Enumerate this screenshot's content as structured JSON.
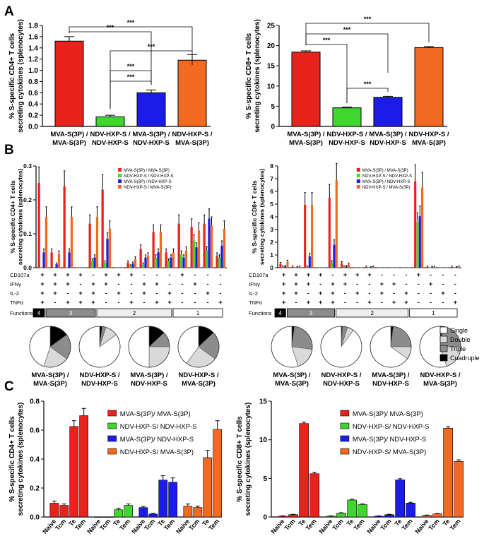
{
  "panel_letters": [
    "A",
    "B",
    "C"
  ],
  "groups": [
    "MVA-S(3P) / MVA-S(3P)",
    "NDV-HXP-S / NDV-HXP-S",
    "MVA-S(3P) / NDV-HXP-S",
    "NDV-HXP-S / MVA-S(3P)"
  ],
  "group_label_lines": [
    [
      "MVA-S(3P) /",
      "MVA-S(3P)"
    ],
    [
      "NDV-HXP-S /",
      "NDV-HXP-S"
    ],
    [
      "MVA-S(3P) /",
      "NDV-HXP-S"
    ],
    [
      "NDV-HXP-S /",
      "MVA-S(3P)"
    ]
  ],
  "colors": {
    "mva_mva": "#e8231b",
    "ndv_ndv": "#3fd62e",
    "mva_ndv": "#1c1ce8",
    "ndv_mva": "#f26a22"
  },
  "significance": "***",
  "legend_B": [
    "MVA-S(3P) / MVA-S(3P)",
    "NDV-HXP-S / NDV-HXP-S",
    "MVA-S(3P) / NDV-HXP-S",
    "NDV-HXP-S / MVA-S(3P)"
  ],
  "legend_C": [
    "MVA-S(3P)/ MVA-S(3P)",
    "NDV-HXP-S/ NDV-HXP-S",
    "MVA-S(3P)/ NDV-HXP-S",
    "NDV-HXP-S/ MVA-S(3P)"
  ],
  "markers": [
    "CD107a",
    "IFNγ",
    "IL-2",
    "TNFα"
  ],
  "functions_label": "Functions",
  "function_boxes": [
    "4",
    "3",
    "2",
    "1"
  ],
  "pie_legend": [
    "Single",
    "Double",
    "Triple",
    "Cuadruple"
  ],
  "subsets": [
    "Naive",
    "Tcm",
    "Te",
    "Tem"
  ],
  "chart_data": [
    {
      "id": "A-left",
      "type": "bar",
      "ylabel": "% S-specific CD4+ T cells\nsecreting cytokines (splenocytes)",
      "ylim": [
        0,
        1.8
      ],
      "yticks": [
        "0.0",
        "0.2",
        "0.4",
        "0.6",
        "0.8",
        "1.0",
        "1.2",
        "1.4",
        "1.6",
        "1.8"
      ],
      "values": [
        1.52,
        0.17,
        0.6,
        1.18
      ],
      "errors": [
        0.08,
        0.03,
        0.05,
        0.1
      ]
    },
    {
      "id": "A-right",
      "type": "bar",
      "ylabel": "% S-specific CD8+ T cells\nsecreting cytokines (splenocytes)",
      "ylim": [
        0,
        25
      ],
      "yticks": [
        "0",
        "5",
        "10",
        "15",
        "20",
        "25"
      ],
      "values": [
        18.4,
        4.6,
        7.2,
        19.5
      ],
      "errors": [
        0.3,
        0.2,
        0.25,
        0.3
      ]
    },
    {
      "id": "B-left",
      "type": "bar",
      "ylabel": "% S-specific CD4+ T cells\nsecreting cytokines (splenocytes)",
      "ylim": [
        0,
        0.3
      ],
      "yticks": [
        "0.0",
        "0.1",
        "0.2",
        "0.3"
      ],
      "combos": [
        [
          1,
          1,
          1,
          1
        ],
        [
          1,
          1,
          1,
          0
        ],
        [
          1,
          1,
          0,
          1
        ],
        [
          1,
          0,
          1,
          1
        ],
        [
          0,
          1,
          1,
          1
        ],
        [
          1,
          1,
          0,
          0
        ],
        [
          1,
          0,
          1,
          0
        ],
        [
          1,
          0,
          0,
          1
        ],
        [
          0,
          1,
          1,
          0
        ],
        [
          0,
          1,
          0,
          1
        ],
        [
          0,
          0,
          1,
          1
        ],
        [
          1,
          0,
          0,
          0
        ],
        [
          0,
          1,
          0,
          0
        ],
        [
          0,
          0,
          1,
          0
        ],
        [
          0,
          0,
          0,
          1
        ]
      ],
      "series": [
        {
          "name": "MVA-S(3P) / MVA-S(3P)",
          "values": [
            0.25,
            0.045,
            0.24,
            0.0,
            0.13,
            0.23,
            0.0,
            0.015,
            0.055,
            0.105,
            0.045,
            0.13,
            0.12,
            0.13,
            0.035
          ]
        },
        {
          "name": "NDV-HXP-S / NDV-HXP-S",
          "values": [
            0.0,
            0.0,
            0.0,
            0.0,
            0.02,
            0.015,
            0.0,
            0.005,
            0.01,
            0.03,
            0.02,
            0.04,
            0.08,
            0.05,
            0.03
          ]
        },
        {
          "name": "MVA-S(3P) / NDV-HXP-S",
          "values": [
            0.045,
            0.01,
            0.045,
            0.0,
            0.03,
            0.085,
            0.0,
            0.012,
            0.03,
            0.045,
            0.03,
            0.03,
            0.06,
            0.145,
            0.065
          ]
        },
        {
          "name": "NDV-HXP-S / MVA-S(3P)",
          "values": [
            0.15,
            0.04,
            0.15,
            0.0,
            0.15,
            0.115,
            0.0,
            0.025,
            0.035,
            0.105,
            0.045,
            0.05,
            0.11,
            0.125,
            0.115
          ]
        }
      ],
      "pies": [
        [
          0.45,
          0.2,
          0.2,
          0.15
        ],
        [
          0.85,
          0.1,
          0.03,
          0.02
        ],
        [
          0.5,
          0.25,
          0.12,
          0.13
        ],
        [
          0.4,
          0.25,
          0.22,
          0.13
        ]
      ]
    },
    {
      "id": "B-right",
      "type": "bar",
      "ylabel": "% S-specific CD8+ T cells\nsecreting cytokines (splenocytes)",
      "ylim": [
        0,
        8
      ],
      "yticks": [
        "0",
        "1",
        "2",
        "3",
        "4",
        "5",
        "6",
        "7",
        "8"
      ],
      "series": [
        {
          "name": "MVA-S(3P) / MVA-S(3P)",
          "values": [
            0.3,
            0.05,
            4.95,
            0.0,
            5.5,
            0.35,
            0.0,
            0.05,
            0.0,
            0.0,
            0.0,
            6.8,
            0.05,
            0.0,
            0.05
          ]
        },
        {
          "name": "NDV-HXP-S / NDV-HXP-S",
          "values": [
            0.05,
            0.0,
            0.05,
            0.0,
            0.4,
            0.05,
            0.0,
            0.0,
            0.0,
            0.0,
            0.0,
            3.6,
            0.0,
            0.0,
            0.0
          ]
        },
        {
          "name": "MVA-S(3P) / NDV-HXP-S",
          "values": [
            0.1,
            0.02,
            0.9,
            0.0,
            1.8,
            0.1,
            0.0,
            0.02,
            0.0,
            0.0,
            0.0,
            4.05,
            0.02,
            0.0,
            0.02
          ]
        },
        {
          "name": "NDV-HXP-S / MVA-S(3P)",
          "values": [
            0.45,
            0.05,
            4.95,
            0.0,
            6.9,
            0.25,
            0.0,
            0.05,
            0.0,
            0.0,
            0.0,
            6.3,
            0.05,
            0.0,
            0.05
          ]
        }
      ],
      "pies": [
        [
          0.55,
          0.18,
          0.25,
          0.02
        ],
        [
          0.9,
          0.05,
          0.04,
          0.01
        ],
        [
          0.65,
          0.1,
          0.23,
          0.02
        ],
        [
          0.55,
          0.2,
          0.23,
          0.02
        ]
      ]
    },
    {
      "id": "C-left",
      "type": "bar",
      "ylabel": "% S-specific CD4+ T cells\nsecreting cytokines (splenocytes)",
      "ylim": [
        0,
        0.8
      ],
      "yticks": [
        "0.0",
        "0.2",
        "0.4",
        "0.6",
        "0.8"
      ],
      "series": [
        {
          "name": "MVA-S(3P)/ MVA-S(3P)",
          "values": [
            0.095,
            0.08,
            0.625,
            0.7
          ],
          "errors": [
            0.015,
            0.01,
            0.04,
            0.05
          ]
        },
        {
          "name": "NDV-HXP-S/ NDV-HXP-S",
          "values": [
            0.0,
            0.0,
            0.05,
            0.08
          ],
          "errors": [
            0,
            0,
            0.01,
            0.01
          ]
        },
        {
          "name": "MVA-S(3P)/ NDV-HXP-S",
          "values": [
            0.065,
            0.02,
            0.255,
            0.24
          ],
          "errors": [
            0.008,
            0.005,
            0.03,
            0.03
          ]
        },
        {
          "name": "NDV-HXP-S/ MVA-S(3P)",
          "values": [
            0.075,
            0.065,
            0.41,
            0.605
          ],
          "errors": [
            0.015,
            0.01,
            0.05,
            0.06
          ]
        }
      ]
    },
    {
      "id": "C-right",
      "type": "bar",
      "ylabel": "% S-specific CD8+ T cells\nsecreting cytokines (splenocytes)",
      "ylim": [
        0,
        15
      ],
      "yticks": [
        "0",
        "5",
        "10",
        "15"
      ],
      "series": [
        {
          "name": "MVA-S(3P)/ MVA-S(3P)",
          "values": [
            0.1,
            0.3,
            12.1,
            5.6
          ],
          "errors": [
            0.05,
            0.05,
            0.2,
            0.2
          ]
        },
        {
          "name": "NDV-HXP-S/ NDV-HXP-S",
          "values": [
            0.1,
            0.5,
            2.2,
            1.6
          ],
          "errors": [
            0.05,
            0.05,
            0.1,
            0.1
          ]
        },
        {
          "name": "MVA-S(3P)/ NDV-HXP-S",
          "values": [
            0.1,
            0.3,
            4.8,
            1.8
          ],
          "errors": [
            0.05,
            0.05,
            0.15,
            0.1
          ]
        },
        {
          "name": "NDV-HXP-S/ MVA-S(3P)",
          "values": [
            0.2,
            0.4,
            11.5,
            7.2
          ],
          "errors": [
            0.05,
            0.05,
            0.2,
            0.2
          ]
        }
      ]
    }
  ]
}
